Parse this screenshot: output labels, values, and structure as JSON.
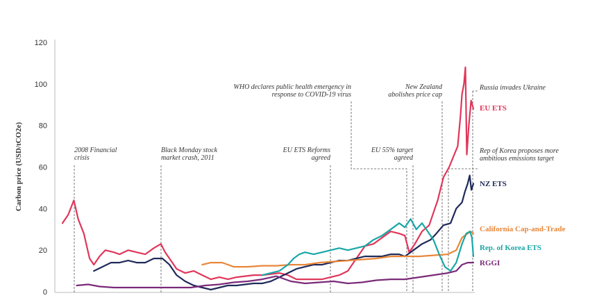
{
  "chart_data": {
    "type": "line",
    "ylabel": "Carbon price (USD/tCO2e)",
    "ylim": [
      0,
      120
    ],
    "yticks": [
      "0",
      "20",
      "40",
      "60",
      "80",
      "100",
      "120"
    ],
    "xlim": [
      2008.0,
      2022.4
    ],
    "grid": false,
    "legend": "right-labels",
    "series": [
      {
        "name": "EU ETS",
        "color": "#e0365a",
        "points": [
          [
            2008.0,
            33
          ],
          [
            2008.2,
            37
          ],
          [
            2008.4,
            44
          ],
          [
            2008.55,
            35
          ],
          [
            2008.75,
            28
          ],
          [
            2008.95,
            16
          ],
          [
            2009.1,
            13
          ],
          [
            2009.3,
            17
          ],
          [
            2009.5,
            20
          ],
          [
            2009.8,
            19
          ],
          [
            2010.0,
            18
          ],
          [
            2010.3,
            20
          ],
          [
            2010.6,
            19
          ],
          [
            2010.9,
            18
          ],
          [
            2011.2,
            21
          ],
          [
            2011.45,
            23
          ],
          [
            2011.6,
            19
          ],
          [
            2011.8,
            15
          ],
          [
            2012.0,
            11
          ],
          [
            2012.3,
            9
          ],
          [
            2012.6,
            10
          ],
          [
            2012.9,
            8
          ],
          [
            2013.2,
            6
          ],
          [
            2013.5,
            7
          ],
          [
            2013.8,
            6
          ],
          [
            2014.1,
            7
          ],
          [
            2014.4,
            7.5
          ],
          [
            2014.7,
            8
          ],
          [
            2015.0,
            8
          ],
          [
            2015.3,
            8.5
          ],
          [
            2015.6,
            9
          ],
          [
            2015.9,
            8
          ],
          [
            2016.2,
            6
          ],
          [
            2016.5,
            6
          ],
          [
            2016.8,
            6
          ],
          [
            2017.1,
            6
          ],
          [
            2017.4,
            7
          ],
          [
            2017.7,
            8
          ],
          [
            2018.0,
            10
          ],
          [
            2018.3,
            16
          ],
          [
            2018.6,
            22
          ],
          [
            2018.9,
            23
          ],
          [
            2019.2,
            26
          ],
          [
            2019.5,
            29
          ],
          [
            2019.8,
            28
          ],
          [
            2020.0,
            27
          ],
          [
            2020.15,
            19
          ],
          [
            2020.35,
            23
          ],
          [
            2020.6,
            29
          ],
          [
            2020.85,
            32
          ],
          [
            2021.0,
            38
          ],
          [
            2021.15,
            44
          ],
          [
            2021.35,
            55
          ],
          [
            2021.55,
            60
          ],
          [
            2021.7,
            65
          ],
          [
            2021.85,
            70
          ],
          [
            2021.95,
            85
          ],
          [
            2022.0,
            95
          ],
          [
            2022.07,
            100
          ],
          [
            2022.12,
            108
          ],
          [
            2022.17,
            66
          ],
          [
            2022.24,
            80
          ],
          [
            2022.32,
            92
          ],
          [
            2022.4,
            88
          ]
        ]
      },
      {
        "name": "NZ ETS",
        "color": "#1f2a5a",
        "points": [
          [
            2009.1,
            10
          ],
          [
            2009.4,
            12
          ],
          [
            2009.7,
            14
          ],
          [
            2010.0,
            14
          ],
          [
            2010.3,
            15
          ],
          [
            2010.6,
            14
          ],
          [
            2010.9,
            14
          ],
          [
            2011.2,
            16
          ],
          [
            2011.5,
            16
          ],
          [
            2011.75,
            13
          ],
          [
            2012.0,
            8
          ],
          [
            2012.3,
            5
          ],
          [
            2012.6,
            3
          ],
          [
            2012.9,
            2
          ],
          [
            2013.2,
            1
          ],
          [
            2013.5,
            2
          ],
          [
            2013.8,
            3
          ],
          [
            2014.1,
            3
          ],
          [
            2014.4,
            3.5
          ],
          [
            2014.7,
            4
          ],
          [
            2015.0,
            4
          ],
          [
            2015.3,
            5
          ],
          [
            2015.6,
            7
          ],
          [
            2015.9,
            9
          ],
          [
            2016.2,
            11
          ],
          [
            2016.5,
            12
          ],
          [
            2016.8,
            13
          ],
          [
            2017.1,
            13
          ],
          [
            2017.4,
            14
          ],
          [
            2017.7,
            15
          ],
          [
            2018.0,
            15
          ],
          [
            2018.3,
            16
          ],
          [
            2018.6,
            17
          ],
          [
            2018.9,
            17
          ],
          [
            2019.2,
            17
          ],
          [
            2019.5,
            18
          ],
          [
            2019.8,
            18
          ],
          [
            2020.0,
            17
          ],
          [
            2020.3,
            20
          ],
          [
            2020.6,
            23
          ],
          [
            2020.9,
            25
          ],
          [
            2021.1,
            28
          ],
          [
            2021.35,
            32
          ],
          [
            2021.6,
            33
          ],
          [
            2021.8,
            40
          ],
          [
            2022.0,
            43
          ],
          [
            2022.1,
            48
          ],
          [
            2022.2,
            52
          ],
          [
            2022.27,
            56
          ],
          [
            2022.33,
            49
          ],
          [
            2022.4,
            52
          ]
        ]
      },
      {
        "name": "California Cap-and-Trade",
        "color": "#e8873a",
        "points": [
          [
            2012.9,
            13
          ],
          [
            2013.2,
            14
          ],
          [
            2013.6,
            14
          ],
          [
            2014.0,
            12
          ],
          [
            2014.5,
            12
          ],
          [
            2015.0,
            12.5
          ],
          [
            2015.5,
            12.5
          ],
          [
            2016.0,
            13
          ],
          [
            2016.5,
            13
          ],
          [
            2017.0,
            14
          ],
          [
            2017.5,
            14.5
          ],
          [
            2018.0,
            15
          ],
          [
            2018.5,
            15.5
          ],
          [
            2019.0,
            16
          ],
          [
            2019.5,
            17
          ],
          [
            2020.0,
            17
          ],
          [
            2020.5,
            17
          ],
          [
            2021.0,
            17.5
          ],
          [
            2021.5,
            18
          ],
          [
            2021.8,
            20
          ],
          [
            2022.0,
            26
          ],
          [
            2022.2,
            28
          ],
          [
            2022.3,
            29
          ],
          [
            2022.4,
            28
          ]
        ]
      },
      {
        "name": "Rep. of Korea ETS",
        "color": "#1aa6a6",
        "points": [
          [
            2015.0,
            8
          ],
          [
            2015.3,
            9
          ],
          [
            2015.6,
            10
          ],
          [
            2015.9,
            13
          ],
          [
            2016.1,
            16
          ],
          [
            2016.3,
            18
          ],
          [
            2016.5,
            19
          ],
          [
            2016.8,
            18
          ],
          [
            2017.1,
            19
          ],
          [
            2017.4,
            20
          ],
          [
            2017.7,
            21
          ],
          [
            2018.0,
            20
          ],
          [
            2018.3,
            21
          ],
          [
            2018.6,
            22
          ],
          [
            2018.9,
            25
          ],
          [
            2019.2,
            27
          ],
          [
            2019.5,
            30
          ],
          [
            2019.8,
            33
          ],
          [
            2020.0,
            31
          ],
          [
            2020.2,
            35
          ],
          [
            2020.4,
            30
          ],
          [
            2020.6,
            33
          ],
          [
            2020.8,
            29
          ],
          [
            2021.0,
            25
          ],
          [
            2021.2,
            18
          ],
          [
            2021.4,
            12
          ],
          [
            2021.6,
            10
          ],
          [
            2021.8,
            14
          ],
          [
            2022.0,
            23
          ],
          [
            2022.15,
            28
          ],
          [
            2022.28,
            29
          ],
          [
            2022.35,
            26
          ],
          [
            2022.4,
            17
          ]
        ]
      },
      {
        "name": "RGGI",
        "color": "#7a2a78",
        "points": [
          [
            2008.5,
            3
          ],
          [
            2008.9,
            3.5
          ],
          [
            2009.3,
            2.5
          ],
          [
            2009.8,
            2
          ],
          [
            2010.5,
            2
          ],
          [
            2011.5,
            2
          ],
          [
            2012.5,
            2
          ],
          [
            2013.0,
            3
          ],
          [
            2013.5,
            3.5
          ],
          [
            2014.0,
            4.5
          ],
          [
            2014.5,
            5
          ],
          [
            2015.0,
            6
          ],
          [
            2015.5,
            7.5
          ],
          [
            2016.0,
            5
          ],
          [
            2016.5,
            4
          ],
          [
            2017.0,
            4.5
          ],
          [
            2017.5,
            5
          ],
          [
            2018.0,
            4
          ],
          [
            2018.5,
            4.5
          ],
          [
            2019.0,
            5.5
          ],
          [
            2019.5,
            6
          ],
          [
            2020.0,
            6
          ],
          [
            2020.5,
            7
          ],
          [
            2021.0,
            8
          ],
          [
            2021.5,
            9
          ],
          [
            2021.8,
            10
          ],
          [
            2022.0,
            13
          ],
          [
            2022.2,
            14
          ],
          [
            2022.4,
            14
          ]
        ]
      }
    ],
    "annotations": [
      {
        "lines": [
          "2008 Financial",
          "crisis"
        ],
        "x": 2008.7
      },
      {
        "lines": [
          "Black Monday stock",
          "market crash, 2011"
        ],
        "x": 2011.7
      },
      {
        "lines": [
          "EU ETS Reforms",
          "agreed"
        ],
        "x": 2018.1
      },
      {
        "lines": [
          "EU 55% target",
          "agreed"
        ],
        "x": 2020.7
      },
      {
        "lines": [
          "WHO declares public health emergency in",
          "response to COVID-19 virus"
        ],
        "x": 2020.05
      },
      {
        "lines": [
          "New Zealand",
          "abolishes price cap"
        ],
        "x": 2021.85
      },
      {
        "lines": [
          "Russia invades Ukraine"
        ],
        "x": 2022.15
      },
      {
        "lines": [
          "Rep of Korea proposes more",
          "ambitious emissions target"
        ],
        "x": 2022.1
      }
    ]
  }
}
